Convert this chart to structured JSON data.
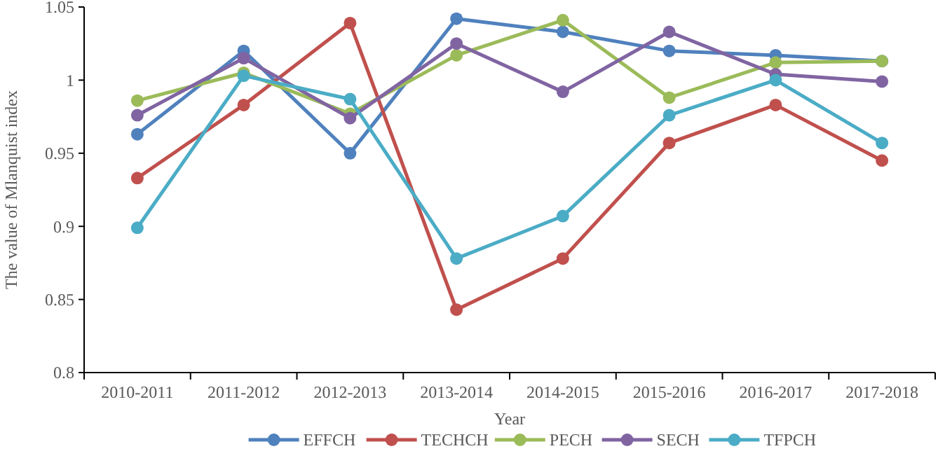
{
  "chart_data": {
    "type": "line",
    "xlabel": "Year",
    "ylabel": "The value of Mlanquist index",
    "categories": [
      "2010-2011",
      "2011-2012",
      "2012-2013",
      "2013-2014",
      "2014-2015",
      "2015-2016",
      "2016-2017",
      "2017-2018"
    ],
    "series": [
      {
        "name": "EFFCH",
        "color": "#4f81bd",
        "values": [
          0.963,
          1.02,
          0.95,
          1.042,
          1.033,
          1.02,
          1.017,
          1.013
        ]
      },
      {
        "name": "TECHCH",
        "color": "#c0504d",
        "values": [
          0.933,
          0.983,
          1.039,
          0.843,
          0.878,
          0.957,
          0.983,
          0.945
        ]
      },
      {
        "name": "PECH",
        "color": "#9bbb59",
        "values": [
          0.986,
          1.005,
          0.977,
          1.017,
          1.041,
          0.988,
          1.012,
          1.013
        ]
      },
      {
        "name": "SECH",
        "color": "#8064a2",
        "values": [
          0.976,
          1.015,
          0.974,
          1.025,
          0.992,
          1.033,
          1.004,
          0.999
        ]
      },
      {
        "name": "TFPCH",
        "color": "#4bacc6",
        "values": [
          0.899,
          1.003,
          0.987,
          0.878,
          0.907,
          0.976,
          1.0,
          0.957
        ]
      }
    ],
    "ylim": [
      0.8,
      1.05
    ],
    "yticks": [
      0.8,
      0.85,
      0.9,
      0.95,
      1,
      1.05
    ],
    "grid": false,
    "legend": "bottom",
    "marker": "circle",
    "line_style": "solid"
  }
}
